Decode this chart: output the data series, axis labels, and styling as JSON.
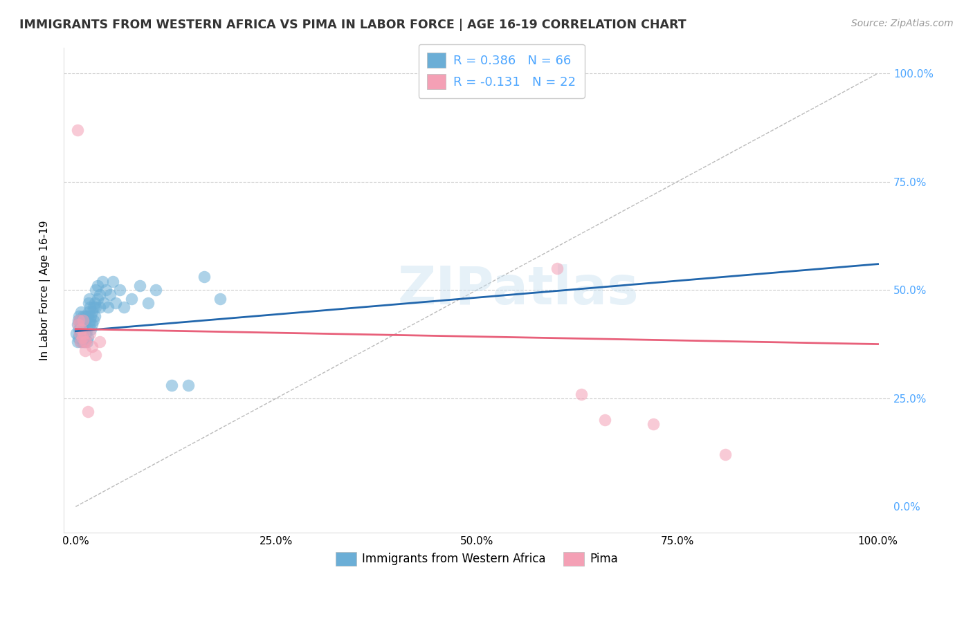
{
  "title": "IMMIGRANTS FROM WESTERN AFRICA VS PIMA IN LABOR FORCE | AGE 16-19 CORRELATION CHART",
  "source": "Source: ZipAtlas.com",
  "ylabel": "In Labor Force | Age 16-19",
  "legend_label1": "Immigrants from Western Africa",
  "legend_label2": "Pima",
  "r1": 0.386,
  "n1": 66,
  "r2": -0.131,
  "n2": 22,
  "color_blue": "#6baed6",
  "color_pink": "#f4a0b5",
  "color_blue_line": "#2166ac",
  "color_pink_line": "#e8607a",
  "color_diag": "#aaaaaa",
  "color_grid": "#cccccc",
  "color_ytick_right": "#4da6ff",
  "watermark": "ZIPatlas",
  "blue_x": [
    0.001,
    0.002,
    0.002,
    0.003,
    0.003,
    0.004,
    0.004,
    0.005,
    0.005,
    0.006,
    0.006,
    0.007,
    0.007,
    0.008,
    0.008,
    0.009,
    0.009,
    0.01,
    0.01,
    0.011,
    0.011,
    0.012,
    0.012,
    0.013,
    0.013,
    0.014,
    0.014,
    0.015,
    0.015,
    0.016,
    0.016,
    0.017,
    0.017,
    0.018,
    0.018,
    0.019,
    0.019,
    0.02,
    0.02,
    0.022,
    0.022,
    0.024,
    0.024,
    0.025,
    0.025,
    0.027,
    0.027,
    0.03,
    0.03,
    0.033,
    0.035,
    0.038,
    0.04,
    0.043,
    0.046,
    0.05,
    0.055,
    0.06,
    0.07,
    0.08,
    0.09,
    0.1,
    0.12,
    0.14,
    0.16,
    0.18
  ],
  "blue_y": [
    0.4,
    0.42,
    0.38,
    0.43,
    0.39,
    0.41,
    0.44,
    0.4,
    0.43,
    0.38,
    0.42,
    0.45,
    0.4,
    0.43,
    0.38,
    0.41,
    0.44,
    0.39,
    0.42,
    0.43,
    0.38,
    0.41,
    0.44,
    0.4,
    0.43,
    0.38,
    0.41,
    0.44,
    0.39,
    0.47,
    0.45,
    0.48,
    0.42,
    0.46,
    0.43,
    0.41,
    0.44,
    0.42,
    0.45,
    0.46,
    0.43,
    0.47,
    0.44,
    0.5,
    0.46,
    0.48,
    0.51,
    0.46,
    0.49,
    0.52,
    0.47,
    0.5,
    0.46,
    0.49,
    0.52,
    0.47,
    0.5,
    0.46,
    0.48,
    0.51,
    0.47,
    0.5,
    0.28,
    0.28,
    0.53,
    0.48
  ],
  "pink_x": [
    0.002,
    0.003,
    0.004,
    0.005,
    0.006,
    0.007,
    0.008,
    0.009,
    0.01,
    0.011,
    0.012,
    0.013,
    0.015,
    0.018,
    0.02,
    0.025,
    0.03,
    0.6,
    0.63,
    0.66,
    0.72,
    0.81
  ],
  "pink_y": [
    0.87,
    0.42,
    0.43,
    0.4,
    0.38,
    0.41,
    0.39,
    0.43,
    0.4,
    0.38,
    0.36,
    0.38,
    0.22,
    0.4,
    0.37,
    0.35,
    0.38,
    0.55,
    0.26,
    0.2,
    0.19,
    0.12
  ],
  "xlim": [
    -0.015,
    1.015
  ],
  "ylim": [
    -0.06,
    1.06
  ],
  "xticks": [
    0.0,
    0.25,
    0.5,
    0.75,
    1.0
  ],
  "yticks": [
    0.0,
    0.25,
    0.5,
    0.75,
    1.0
  ],
  "xtick_labels": [
    "0.0%",
    "25.0%",
    "50.0%",
    "75.0%",
    "100.0%"
  ],
  "ytick_labels": [
    "0.0%",
    "25.0%",
    "50.0%",
    "75.0%",
    "100.0%"
  ],
  "blue_trend_x": [
    0.0,
    1.0
  ],
  "blue_trend_y": [
    0.405,
    0.56
  ],
  "pink_trend_x": [
    0.0,
    1.0
  ],
  "pink_trend_y": [
    0.41,
    0.375
  ],
  "figsize": [
    14.06,
    8.92
  ],
  "dpi": 100
}
